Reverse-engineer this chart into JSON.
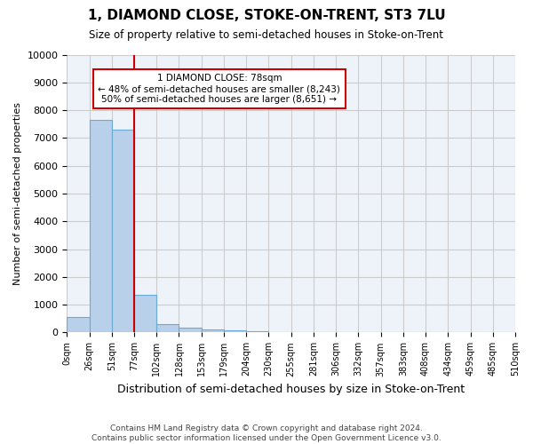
{
  "title": "1, DIAMOND CLOSE, STOKE-ON-TRENT, ST3 7LU",
  "subtitle": "Size of property relative to semi-detached houses in Stoke-on-Trent",
  "xlabel": "Distribution of semi-detached houses by size in Stoke-on-Trent",
  "ylabel": "Number of semi-detached properties",
  "footer": "Contains HM Land Registry data © Crown copyright and database right 2024.\nContains public sector information licensed under the Open Government Licence v3.0.",
  "bin_edges": [
    "0sqm",
    "26sqm",
    "51sqm",
    "77sqm",
    "102sqm",
    "128sqm",
    "153sqm",
    "179sqm",
    "204sqm",
    "230sqm",
    "255sqm",
    "281sqm",
    "306sqm",
    "332sqm",
    "357sqm",
    "383sqm",
    "408sqm",
    "434sqm",
    "459sqm",
    "485sqm",
    "510sqm"
  ],
  "bar_values": [
    550,
    7650,
    7300,
    1350,
    290,
    165,
    100,
    75,
    50,
    0,
    0,
    0,
    0,
    0,
    0,
    0,
    0,
    0,
    0,
    0
  ],
  "bar_color": "#b8d0ea",
  "bar_edge_color": "#6aaad4",
  "property_sqm": 78,
  "property_label": "1 DIAMOND CLOSE: 78sqm",
  "pct_smaller": 48,
  "n_smaller": "8,243",
  "pct_larger": 50,
  "n_larger": "8,651",
  "annotation_box_color": "#ffffff",
  "annotation_box_edge": "#cc0000",
  "vline_color": "#cc0000",
  "vline_x": 2.5,
  "ylim": [
    0,
    10000
  ],
  "yticks": [
    0,
    1000,
    2000,
    3000,
    4000,
    5000,
    6000,
    7000,
    8000,
    9000,
    10000
  ],
  "grid_color": "#cccccc",
  "background_color": "#ffffff",
  "plot_bg_color": "#eef3fa"
}
